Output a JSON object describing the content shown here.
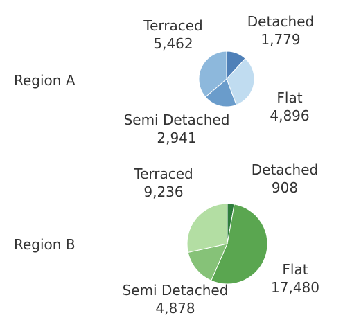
{
  "chart_data": {
    "type": "pie",
    "categories": [
      "Detached",
      "Flat",
      "Semi Detached",
      "Terraced"
    ],
    "panels": [
      {
        "region": "Region A",
        "slices": [
          {
            "label": "Detached",
            "value": "1,779",
            "amount": 1779,
            "color": "#4f80b8"
          },
          {
            "label": "Flat",
            "value": "4,896",
            "amount": 4896,
            "color": "#c0dcf0"
          },
          {
            "label": "Semi Detached",
            "value": "2,941",
            "amount": 2941,
            "color": "#6a9ccb"
          },
          {
            "label": "Terraced",
            "value": "5,462",
            "amount": 5462,
            "color": "#8db8dc"
          }
        ]
      },
      {
        "region": "Region B",
        "slices": [
          {
            "label": "Detached",
            "value": "908",
            "amount": 908,
            "color": "#2e7d3c"
          },
          {
            "label": "Flat",
            "value": "17,480",
            "amount": 17480,
            "color": "#5aa650"
          },
          {
            "label": "Semi Detached",
            "value": "4,878",
            "amount": 4878,
            "color": "#86c278"
          },
          {
            "label": "Terraced",
            "value": "9,236",
            "amount": 9236,
            "color": "#b3dea3"
          }
        ]
      }
    ]
  }
}
